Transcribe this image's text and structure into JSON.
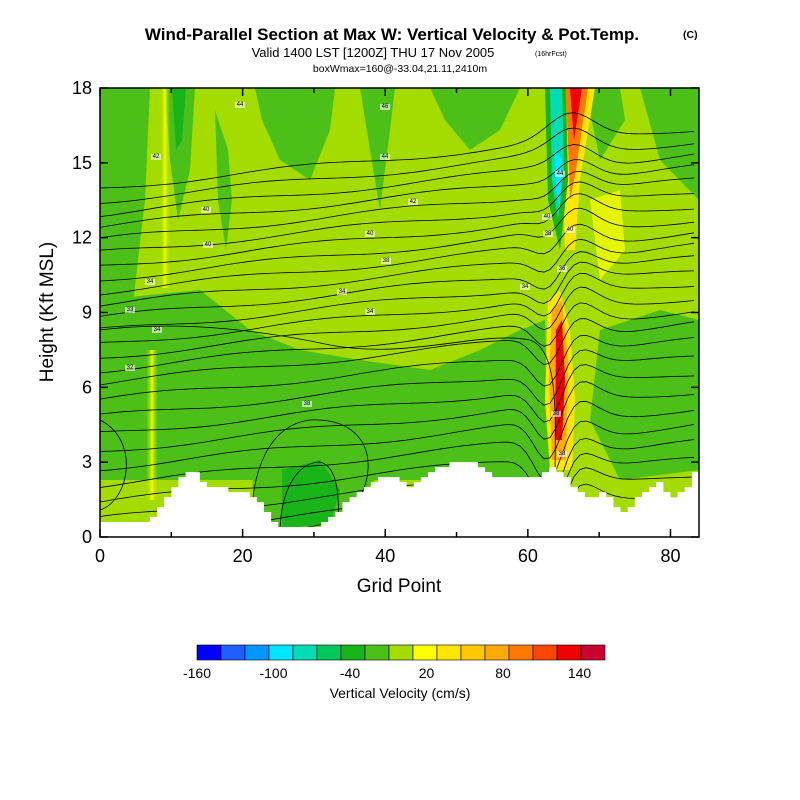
{
  "header": {
    "title": "Wind-Parallel Section at Max W: Vertical Velocity & Pot.Temp.",
    "copyright": "(C)",
    "valid": "Valid 1400 LST [1200Z] THU 17 Nov 2005",
    "valid_note": "(16hrFcst)",
    "box_info": "boxWmax=160@-33.04,21.11,2410m"
  },
  "chart_data": {
    "type": "heatmap",
    "xlabel": "Grid Point",
    "ylabel": "Height (Kft MSL)",
    "xlim": [
      0,
      84
    ],
    "ylim": [
      0,
      18
    ],
    "xticks": [
      "0",
      "20",
      "40",
      "60",
      "80"
    ],
    "yticks": [
      "0",
      "3",
      "6",
      "9",
      "12",
      "15",
      "18"
    ],
    "terrain_kft": [
      0.6,
      0.6,
      0.6,
      0.6,
      0.6,
      0.6,
      0.6,
      0.8,
      1.2,
      1.6,
      2.0,
      2.4,
      2.6,
      2.6,
      2.2,
      2.0,
      2.0,
      2.0,
      1.8,
      1.8,
      1.8,
      1.6,
      1.4,
      1.0,
      0.6,
      0.4,
      0.4,
      0.4,
      0.4,
      0.4,
      0.4,
      0.6,
      0.8,
      1.0,
      1.4,
      1.6,
      1.8,
      2.0,
      2.2,
      2.4,
      2.4,
      2.4,
      2.2,
      2.0,
      2.2,
      2.4,
      2.6,
      2.8,
      2.8,
      3.0,
      3.0,
      3.0,
      3.0,
      2.8,
      2.6,
      2.4,
      2.4,
      2.4,
      2.4,
      2.4,
      2.4,
      2.4,
      2.6,
      2.8,
      2.6,
      2.4,
      2.0,
      1.8,
      1.6,
      1.6,
      1.8,
      1.6,
      1.2,
      1.0,
      1.2,
      1.6,
      1.8,
      2.0,
      2.2,
      1.8,
      1.6,
      1.8,
      2.0,
      2.6,
      3.2
    ],
    "colorbar": {
      "label": "Vertical Velocity (cm/s)",
      "tick_labels": [
        "-160",
        "-100",
        "-40",
        "20",
        "80",
        "140"
      ],
      "bins": [
        -160,
        -140,
        -120,
        -100,
        -80,
        -60,
        -40,
        -20,
        0,
        20,
        40,
        60,
        80,
        100,
        120,
        140,
        160
      ],
      "colors": [
        "#0000ff",
        "#1e5fff",
        "#0096ff",
        "#00e6ff",
        "#00dcb4",
        "#00c85a",
        "#18b418",
        "#4cc018",
        "#a4dc00",
        "#ffff00",
        "#ffe600",
        "#ffc800",
        "#ffaa00",
        "#ff7800",
        "#ff4600",
        "#f00000",
        "#c80032"
      ]
    },
    "contour_labels": [
      "32",
      "33",
      "34",
      "36",
      "38",
      "40",
      "42",
      "44",
      "46"
    ]
  }
}
